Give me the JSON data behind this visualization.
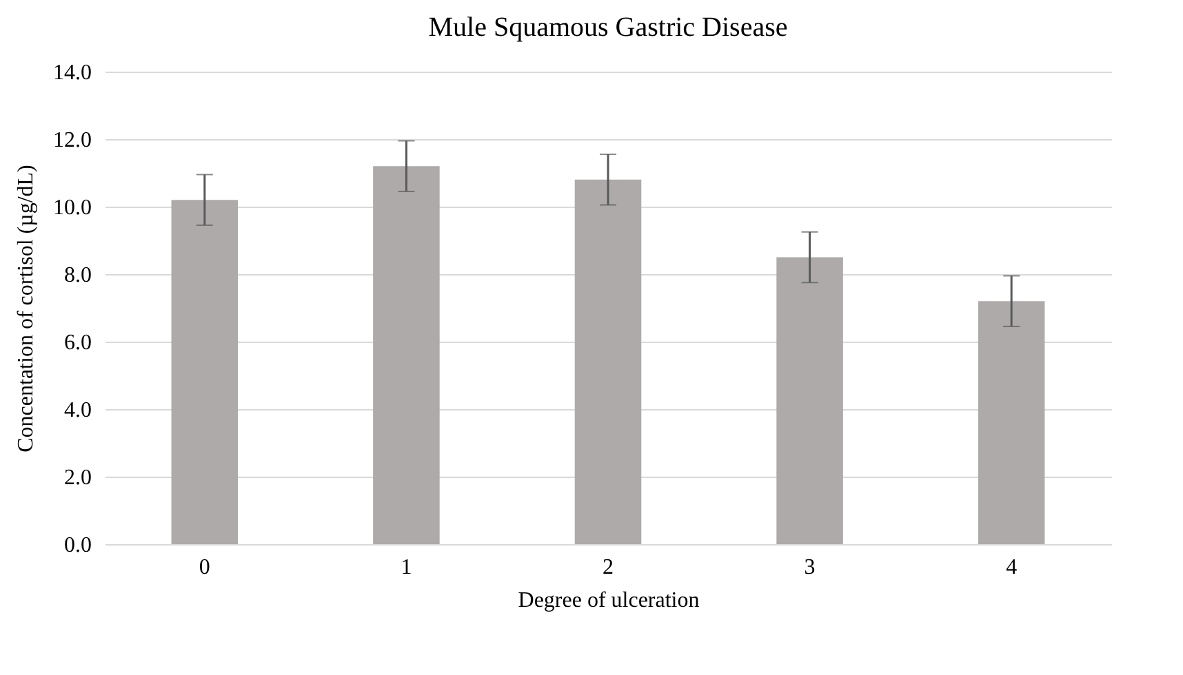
{
  "chart_data": {
    "type": "bar",
    "title": "Mule Squamous Gastric Disease",
    "xlabel": "Degree of ulceration",
    "ylabel": "Concentation of cortisol (µg/dL)",
    "categories": [
      "0",
      "1",
      "2",
      "3",
      "4"
    ],
    "values": [
      10.2,
      11.2,
      10.8,
      8.5,
      7.2
    ],
    "errors": [
      0.75,
      0.75,
      0.75,
      0.75,
      0.75
    ],
    "color": "#aeaaaa",
    "ylim": [
      0,
      14
    ],
    "yticks": [
      {
        "value": 0,
        "label": "0.0"
      },
      {
        "value": 2,
        "label": "2.0"
      },
      {
        "value": 4,
        "label": "4.0"
      },
      {
        "value": 6,
        "label": "6.0"
      },
      {
        "value": 8,
        "label": "8.0"
      },
      {
        "value": 10,
        "label": "10.0"
      },
      {
        "value": 12,
        "label": "12.0"
      },
      {
        "value": 14,
        "label": "14.0"
      }
    ],
    "grid": "y"
  }
}
